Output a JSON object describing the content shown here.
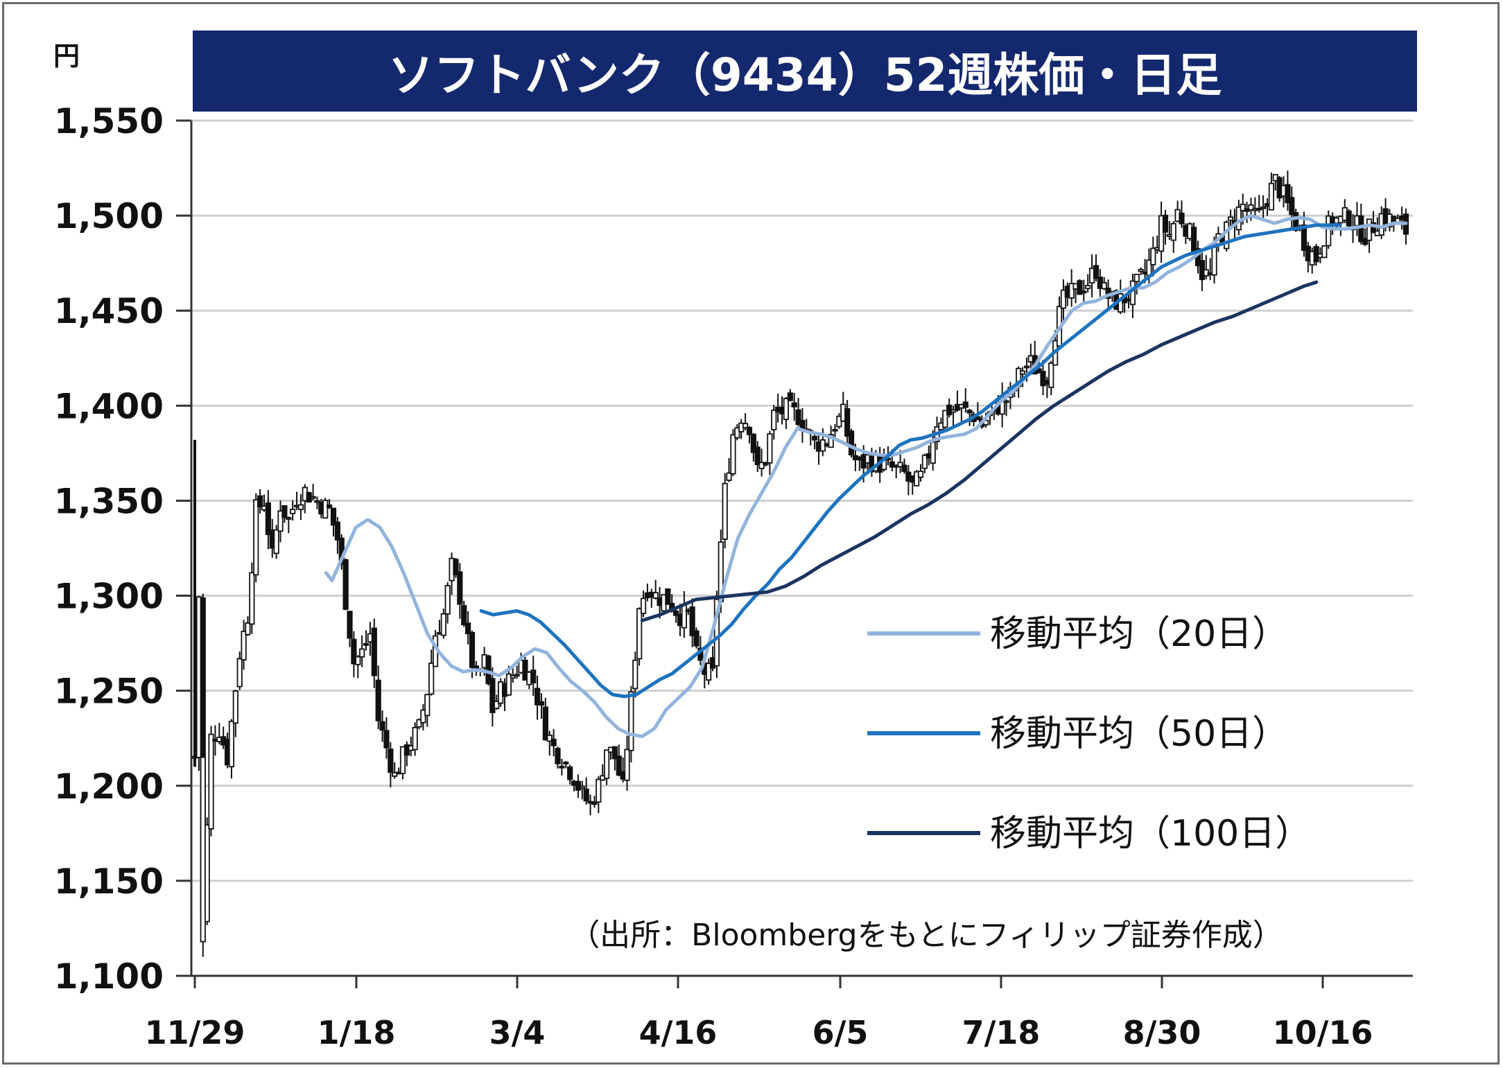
{
  "chart_data": {
    "type": "candlestick",
    "title": "ソフトバンク（9434）52週株価・日足",
    "unit": "円",
    "ylim": [
      1100,
      1550
    ],
    "yticks": [
      "1,100",
      "1,150",
      "1,200",
      "1,250",
      "1,300",
      "1,350",
      "1,400",
      "1,450",
      "1,500",
      "1,550"
    ],
    "ytick_values": [
      1100,
      1150,
      1200,
      1250,
      1300,
      1350,
      1400,
      1450,
      1500,
      1550
    ],
    "grid": true,
    "xlabels": [
      "11/29",
      "1/18",
      "3/4",
      "4/16",
      "6/5",
      "7/18",
      "8/30",
      "10/16"
    ],
    "xlabel_index": [
      0,
      34,
      68,
      102,
      136,
      170,
      204,
      238
    ],
    "n_days": 258,
    "candle_color": "#111111",
    "price_anchors": [
      [
        0,
        1215
      ],
      [
        1,
        1300
      ],
      [
        2,
        1130
      ],
      [
        4,
        1225
      ],
      [
        6,
        1230
      ],
      [
        8,
        1215
      ],
      [
        11,
        1270
      ],
      [
        13,
        1290
      ],
      [
        15,
        1345
      ],
      [
        17,
        1350
      ],
      [
        19,
        1320
      ],
      [
        21,
        1348
      ],
      [
        23,
        1340
      ],
      [
        25,
        1352
      ],
      [
        27,
        1355
      ],
      [
        30,
        1350
      ],
      [
        33,
        1345
      ],
      [
        35,
        1330
      ],
      [
        37,
        1298
      ],
      [
        39,
        1265
      ],
      [
        41,
        1270
      ],
      [
        43,
        1280
      ],
      [
        45,
        1235
      ],
      [
        47,
        1220
      ],
      [
        49,
        1205
      ],
      [
        52,
        1220
      ],
      [
        55,
        1230
      ],
      [
        57,
        1250
      ],
      [
        59,
        1280
      ],
      [
        61,
        1290
      ],
      [
        63,
        1315
      ],
      [
        65,
        1300
      ],
      [
        67,
        1275
      ],
      [
        69,
        1255
      ],
      [
        71,
        1265
      ],
      [
        73,
        1240
      ],
      [
        75,
        1250
      ],
      [
        77,
        1255
      ],
      [
        80,
        1265
      ],
      [
        83,
        1255
      ],
      [
        86,
        1230
      ],
      [
        88,
        1220
      ],
      [
        90,
        1215
      ],
      [
        93,
        1205
      ],
      [
        95,
        1195
      ],
      [
        97,
        1190
      ],
      [
        99,
        1200
      ],
      [
        101,
        1220
      ],
      [
        103,
        1215
      ],
      [
        105,
        1198
      ],
      [
        107,
        1245
      ],
      [
        109,
        1295
      ],
      [
        111,
        1305
      ],
      [
        113,
        1300
      ],
      [
        116,
        1298
      ],
      [
        119,
        1290
      ],
      [
        121,
        1290
      ],
      [
        123,
        1268
      ],
      [
        125,
        1260
      ],
      [
        127,
        1258
      ],
      [
        128,
        1300
      ],
      [
        130,
        1355
      ],
      [
        132,
        1385
      ],
      [
        134,
        1395
      ],
      [
        136,
        1390
      ],
      [
        138,
        1365
      ],
      [
        140,
        1372
      ],
      [
        142,
        1395
      ],
      [
        145,
        1398
      ],
      [
        148,
        1395
      ],
      [
        150,
        1388
      ],
      [
        152,
        1380
      ],
      [
        155,
        1382
      ],
      [
        157,
        1390
      ],
      [
        159,
        1395
      ],
      [
        161,
        1375
      ],
      [
        163,
        1368
      ],
      [
        165,
        1372
      ],
      [
        167,
        1370
      ],
      [
        170,
        1368
      ],
      [
        172,
        1366
      ],
      [
        174,
        1364
      ],
      [
        176,
        1357
      ],
      [
        178,
        1362
      ],
      [
        180,
        1375
      ],
      [
        182,
        1392
      ],
      [
        185,
        1398
      ],
      [
        188,
        1398
      ],
      [
        191,
        1395
      ],
      [
        193,
        1390
      ],
      [
        195,
        1395
      ],
      [
        197,
        1400
      ],
      [
        200,
        1405
      ],
      [
        203,
        1420
      ],
      [
        205,
        1422
      ],
      [
        207,
        1418
      ],
      [
        209,
        1415
      ],
      [
        211,
        1440
      ],
      [
        213,
        1455
      ],
      [
        216,
        1460
      ],
      [
        219,
        1465
      ],
      [
        221,
        1472
      ],
      [
        223,
        1460
      ],
      [
        225,
        1455
      ],
      [
        227,
        1455
      ],
      [
        230,
        1460
      ],
      [
        233,
        1470
      ],
      [
        235,
        1480
      ],
      [
        237,
        1495
      ],
      [
        239,
        1490
      ],
      [
        241,
        1502
      ],
      [
        243,
        1495
      ],
      [
        245,
        1485
      ],
      [
        247,
        1470
      ],
      [
        249,
        1468
      ],
      [
        251,
        1488
      ],
      [
        253,
        1492
      ],
      [
        255,
        1500
      ],
      [
        257,
        1505
      ],
      [
        259,
        1500
      ],
      [
        261,
        1500
      ],
      [
        263,
        1510
      ],
      [
        265,
        1518
      ],
      [
        267,
        1510
      ],
      [
        269,
        1500
      ],
      [
        271,
        1492
      ],
      [
        273,
        1482
      ],
      [
        275,
        1478
      ],
      [
        277,
        1490
      ],
      [
        279,
        1498
      ],
      [
        281,
        1497
      ],
      [
        283,
        1500
      ],
      [
        285,
        1494
      ],
      [
        287,
        1490
      ],
      [
        289,
        1495
      ],
      [
        291,
        1500
      ],
      [
        293,
        1498
      ],
      [
        295,
        1496
      ],
      [
        297,
        1492
      ]
    ],
    "series": [
      {
        "name": "移動平均（20日）",
        "color": "#92b4dc",
        "values": [
          [
            22,
            1312
          ],
          [
            23,
            1308
          ],
          [
            25,
            1322
          ],
          [
            27,
            1336
          ],
          [
            29,
            1340
          ],
          [
            31,
            1336
          ],
          [
            33,
            1326
          ],
          [
            35,
            1312
          ],
          [
            37,
            1296
          ],
          [
            39,
            1280
          ],
          [
            41,
            1270
          ],
          [
            43,
            1263
          ],
          [
            45,
            1260
          ],
          [
            47,
            1261
          ],
          [
            49,
            1260
          ],
          [
            51,
            1258
          ],
          [
            53,
            1262
          ],
          [
            55,
            1268
          ],
          [
            57,
            1272
          ],
          [
            59,
            1270
          ],
          [
            61,
            1262
          ],
          [
            63,
            1255
          ],
          [
            65,
            1250
          ],
          [
            67,
            1244
          ],
          [
            69,
            1236
          ],
          [
            71,
            1230
          ],
          [
            73,
            1227
          ],
          [
            75,
            1226
          ],
          [
            77,
            1230
          ],
          [
            79,
            1240
          ],
          [
            81,
            1246
          ],
          [
            83,
            1252
          ],
          [
            85,
            1262
          ],
          [
            87,
            1284
          ],
          [
            89,
            1308
          ],
          [
            91,
            1330
          ],
          [
            93,
            1343
          ],
          [
            95,
            1354
          ],
          [
            97,
            1365
          ],
          [
            99,
            1378
          ],
          [
            101,
            1388
          ],
          [
            103,
            1386
          ],
          [
            105,
            1385
          ],
          [
            107,
            1383
          ],
          [
            109,
            1380
          ],
          [
            111,
            1377
          ],
          [
            113,
            1375
          ],
          [
            115,
            1374
          ],
          [
            117,
            1374
          ],
          [
            119,
            1376
          ],
          [
            121,
            1378
          ],
          [
            123,
            1381
          ],
          [
            125,
            1383
          ],
          [
            127,
            1384
          ],
          [
            129,
            1385
          ],
          [
            131,
            1388
          ],
          [
            133,
            1395
          ],
          [
            135,
            1402
          ],
          [
            137,
            1407
          ],
          [
            139,
            1414
          ],
          [
            141,
            1422
          ],
          [
            143,
            1432
          ],
          [
            145,
            1441
          ],
          [
            147,
            1450
          ],
          [
            149,
            1454
          ],
          [
            151,
            1455
          ],
          [
            153,
            1458
          ],
          [
            155,
            1460
          ],
          [
            157,
            1462
          ],
          [
            159,
            1462
          ],
          [
            161,
            1465
          ],
          [
            163,
            1470
          ],
          [
            165,
            1473
          ],
          [
            167,
            1477
          ],
          [
            169,
            1482
          ],
          [
            171,
            1486
          ],
          [
            173,
            1492
          ],
          [
            175,
            1497
          ],
          [
            177,
            1500
          ],
          [
            179,
            1498
          ],
          [
            181,
            1496
          ],
          [
            183,
            1498
          ],
          [
            185,
            1499
          ],
          [
            187,
            1498
          ],
          [
            189,
            1494
          ],
          [
            191,
            1493
          ],
          [
            193,
            1493
          ],
          [
            195,
            1494
          ],
          [
            197,
            1495
          ],
          [
            199,
            1494
          ],
          [
            201,
            1496
          ],
          [
            203,
            1496
          ]
        ]
      },
      {
        "name": "移動平均（50日）",
        "color": "#1e73be",
        "values": [
          [
            48,
            1292
          ],
          [
            50,
            1290
          ],
          [
            52,
            1291
          ],
          [
            54,
            1292
          ],
          [
            56,
            1290
          ],
          [
            58,
            1286
          ],
          [
            60,
            1280
          ],
          [
            62,
            1274
          ],
          [
            64,
            1267
          ],
          [
            66,
            1260
          ],
          [
            68,
            1253
          ],
          [
            70,
            1248
          ],
          [
            72,
            1247
          ],
          [
            74,
            1248
          ],
          [
            76,
            1252
          ],
          [
            78,
            1256
          ],
          [
            80,
            1259
          ],
          [
            82,
            1264
          ],
          [
            84,
            1269
          ],
          [
            86,
            1274
          ],
          [
            88,
            1279
          ],
          [
            90,
            1285
          ],
          [
            92,
            1293
          ],
          [
            94,
            1300
          ],
          [
            96,
            1306
          ],
          [
            98,
            1314
          ],
          [
            100,
            1320
          ],
          [
            102,
            1328
          ],
          [
            104,
            1336
          ],
          [
            106,
            1344
          ],
          [
            108,
            1351
          ],
          [
            110,
            1357
          ],
          [
            112,
            1363
          ],
          [
            114,
            1368
          ],
          [
            116,
            1373
          ],
          [
            118,
            1379
          ],
          [
            120,
            1382
          ],
          [
            122,
            1383
          ],
          [
            124,
            1385
          ],
          [
            126,
            1387
          ],
          [
            128,
            1390
          ],
          [
            130,
            1393
          ],
          [
            132,
            1397
          ],
          [
            134,
            1402
          ],
          [
            136,
            1407
          ],
          [
            138,
            1412
          ],
          [
            140,
            1417
          ],
          [
            142,
            1422
          ],
          [
            144,
            1428
          ],
          [
            146,
            1433
          ],
          [
            148,
            1438
          ],
          [
            150,
            1443
          ],
          [
            152,
            1448
          ],
          [
            154,
            1453
          ],
          [
            156,
            1458
          ],
          [
            158,
            1463
          ],
          [
            160,
            1468
          ],
          [
            162,
            1473
          ],
          [
            164,
            1476
          ],
          [
            166,
            1479
          ],
          [
            168,
            1481
          ],
          [
            170,
            1483
          ],
          [
            172,
            1485
          ],
          [
            174,
            1487
          ],
          [
            176,
            1489
          ],
          [
            178,
            1490
          ],
          [
            180,
            1491
          ],
          [
            182,
            1492
          ],
          [
            184,
            1493
          ],
          [
            186,
            1494
          ],
          [
            188,
            1495
          ],
          [
            190,
            1495
          ],
          [
            192,
            1495
          ]
        ]
      },
      {
        "name": "移動平均（100日）",
        "color": "#1b3461",
        "values": [
          [
            75,
            1287
          ],
          [
            78,
            1290
          ],
          [
            81,
            1294
          ],
          [
            84,
            1298
          ],
          [
            87,
            1299
          ],
          [
            90,
            1300
          ],
          [
            93,
            1301
          ],
          [
            96,
            1302
          ],
          [
            99,
            1305
          ],
          [
            102,
            1310
          ],
          [
            105,
            1316
          ],
          [
            108,
            1321
          ],
          [
            111,
            1326
          ],
          [
            114,
            1331
          ],
          [
            117,
            1337
          ],
          [
            120,
            1343
          ],
          [
            123,
            1348
          ],
          [
            126,
            1354
          ],
          [
            129,
            1361
          ],
          [
            132,
            1369
          ],
          [
            135,
            1377
          ],
          [
            138,
            1385
          ],
          [
            141,
            1393
          ],
          [
            144,
            1400
          ],
          [
            147,
            1406
          ],
          [
            150,
            1412
          ],
          [
            153,
            1418
          ],
          [
            156,
            1423
          ],
          [
            159,
            1427
          ],
          [
            162,
            1432
          ],
          [
            165,
            1436
          ],
          [
            168,
            1440
          ],
          [
            171,
            1444
          ],
          [
            174,
            1447
          ],
          [
            177,
            1451
          ],
          [
            180,
            1455
          ],
          [
            183,
            1459
          ],
          [
            186,
            1463
          ],
          [
            188,
            1465
          ]
        ]
      }
    ],
    "legend": [
      {
        "label": "移動平均（20日）",
        "color": "#92b4dc"
      },
      {
        "label": "移動平均（50日）",
        "color": "#1e73be"
      },
      {
        "label": "移動平均（100日）",
        "color": "#1b3461"
      }
    ],
    "legend_placement": "right-middle",
    "source": "（出所：Bloombergをもとにフィリップ証券作成）"
  }
}
